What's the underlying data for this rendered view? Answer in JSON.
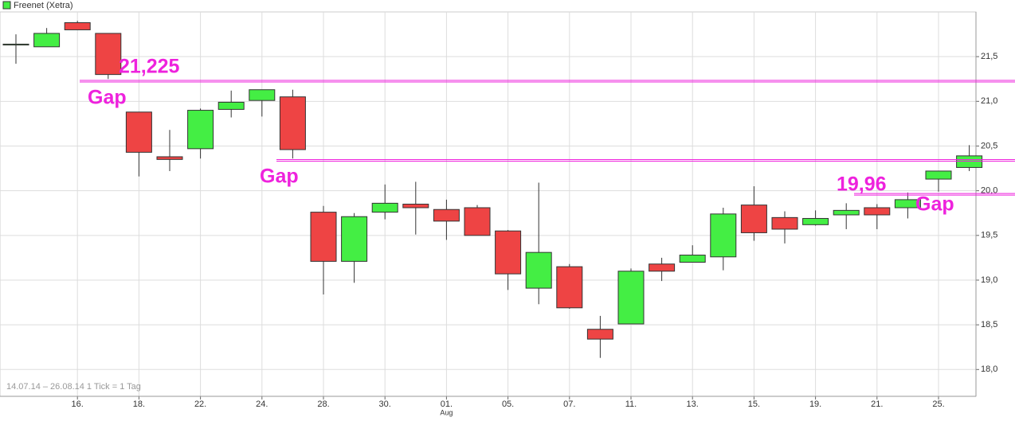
{
  "chart_data": {
    "type": "candlestick",
    "title": "Freenet (Xetra)",
    "footer": "14.07.14 – 26.08.14   1 Tick = 1 Tag",
    "month_label": "Aug",
    "categories": [
      null,
      null,
      "16.",
      null,
      "18.",
      null,
      "22.",
      null,
      "24.",
      null,
      "28.",
      null,
      "30.",
      null,
      "01.",
      null,
      "05.",
      null,
      "07.",
      null,
      "11.",
      null,
      "13.",
      null,
      "15.",
      null,
      "19.",
      null,
      "21.",
      null,
      "25.",
      null
    ],
    "open": [
      21.63,
      21.61,
      21.88,
      21.76,
      20.88,
      20.38,
      20.47,
      20.91,
      21.01,
      21.05,
      19.76,
      19.21,
      19.76,
      19.85,
      19.79,
      19.81,
      19.55,
      18.91,
      19.15,
      18.45,
      18.51,
      19.18,
      19.2,
      19.26,
      19.84,
      19.7,
      19.62,
      19.73,
      19.81,
      19.81,
      20.13,
      20.26
    ],
    "high": [
      21.75,
      21.82,
      21.9,
      21.76,
      20.88,
      20.68,
      20.92,
      21.12,
      21.13,
      21.13,
      19.83,
      19.75,
      20.07,
      20.1,
      19.9,
      19.84,
      19.56,
      20.09,
      19.18,
      18.6,
      19.13,
      19.25,
      19.39,
      19.81,
      20.05,
      19.77,
      19.78,
      19.86,
      19.85,
      19.98,
      20.22,
      20.51
    ],
    "low": [
      21.42,
      21.61,
      21.8,
      21.25,
      20.16,
      20.22,
      20.36,
      20.82,
      20.83,
      20.36,
      18.84,
      18.97,
      19.68,
      19.51,
      19.45,
      19.5,
      18.89,
      18.73,
      18.68,
      18.13,
      18.51,
      18.99,
      19.2,
      19.11,
      19.44,
      19.41,
      19.61,
      19.57,
      19.57,
      19.69,
      19.99,
      20.22
    ],
    "close": [
      21.64,
      21.76,
      21.8,
      21.3,
      20.43,
      20.35,
      20.9,
      20.99,
      21.13,
      20.46,
      19.21,
      19.71,
      19.86,
      19.81,
      19.66,
      19.5,
      19.07,
      19.31,
      18.69,
      18.34,
      19.1,
      19.1,
      19.28,
      19.74,
      19.53,
      19.57,
      19.69,
      19.78,
      19.73,
      19.9,
      20.22,
      20.39
    ],
    "up_color": "#44ee44",
    "down_color": "#ee4444",
    "ylim": [
      17.7,
      22.0
    ],
    "yticks": [
      {
        "value": 18,
        "label": "18,0"
      },
      {
        "value": 18.5,
        "label": "18,5"
      },
      {
        "value": 19,
        "label": "19,0"
      },
      {
        "value": 19.5,
        "label": "19,5"
      },
      {
        "value": 20,
        "label": "20,0"
      },
      {
        "value": 20.5,
        "label": "20,5"
      },
      {
        "value": 21,
        "label": "21,0"
      },
      {
        "value": 21.5,
        "label": "21,5"
      }
    ],
    "grid": true,
    "hlines": [
      {
        "value": 21.225,
        "color": "#ee22dd"
      },
      {
        "value": 20.34,
        "color": "#ee22dd"
      },
      {
        "value": 19.96,
        "color": "#ee22dd"
      }
    ],
    "annotations": [
      "21,225",
      "Gap",
      "Gap",
      "19,96",
      "Gap"
    ]
  }
}
